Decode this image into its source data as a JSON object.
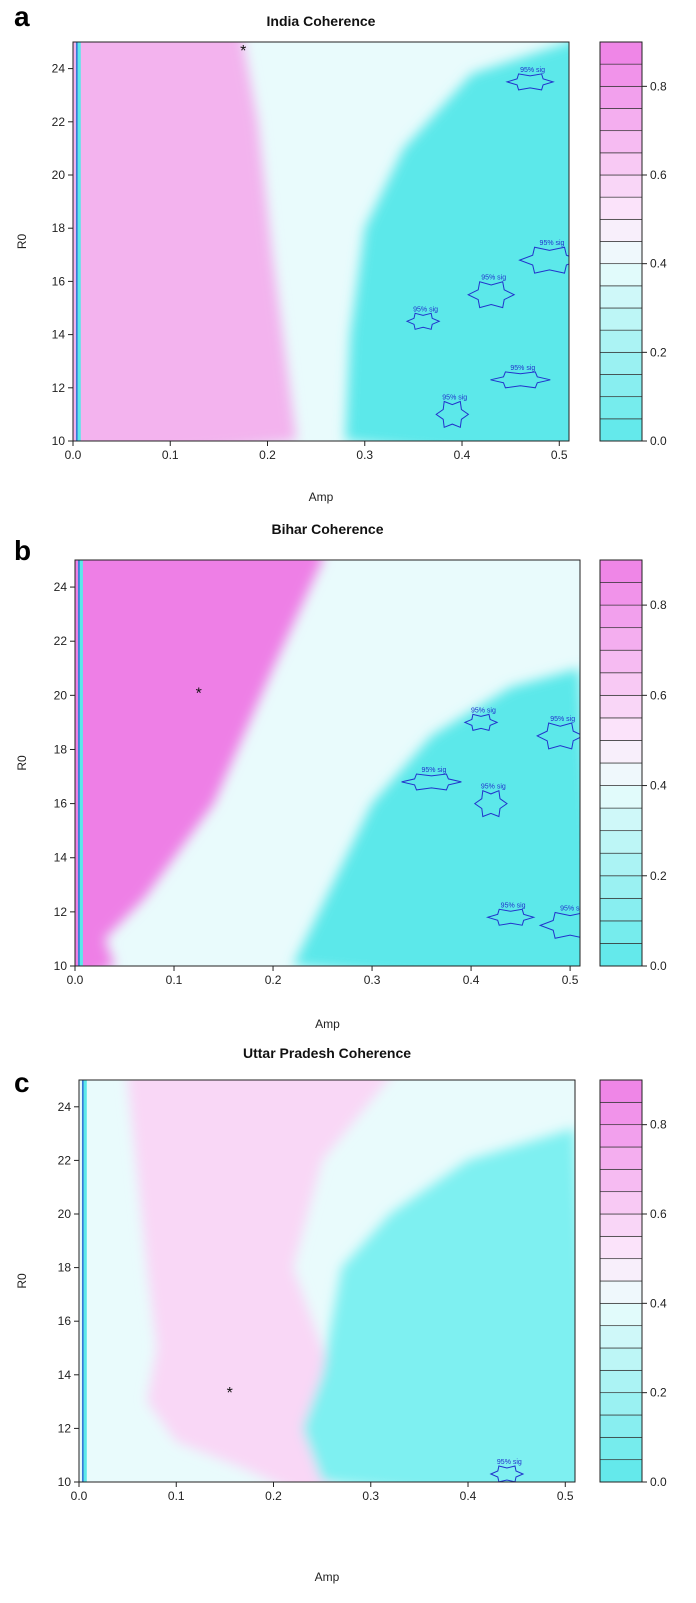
{
  "chart_data": [
    {
      "type": "heatmap",
      "panel_label": "a",
      "title": "India Coherence",
      "xlabel": "Amp",
      "ylabel": "R0",
      "xlim": [
        0.0,
        0.51
      ],
      "ylim": [
        10,
        25
      ],
      "xticks": [
        "0.0",
        "0.1",
        "0.2",
        "0.3",
        "0.4",
        "0.5"
      ],
      "yticks": [
        "10",
        "12",
        "14",
        "16",
        "18",
        "20",
        "22",
        "24"
      ],
      "colorbar": {
        "range": [
          0.0,
          0.9
        ],
        "ticks": [
          "0.0",
          "0.2",
          "0.4",
          "0.6",
          "0.8"
        ],
        "levels": 18
      },
      "pink_boundary": [
        [
          0.23,
          10
        ],
        [
          0.205,
          17
        ],
        [
          0.19,
          22
        ],
        [
          0.175,
          25
        ]
      ],
      "cyan_boundary": [
        [
          0.28,
          10
        ],
        [
          0.285,
          14
        ],
        [
          0.3,
          18
        ],
        [
          0.34,
          21
        ],
        [
          0.41,
          23.8
        ],
        [
          0.51,
          25
        ]
      ],
      "significance_label": "95% sig",
      "significance_points": [
        [
          0.36,
          14.5
        ],
        [
          0.43,
          15.5
        ],
        [
          0.46,
          12.3
        ],
        [
          0.39,
          11
        ],
        [
          0.47,
          23.5
        ],
        [
          0.49,
          16.8
        ]
      ],
      "max_marker": {
        "amp": 0.175,
        "r0": 24.7,
        "symbol": "*"
      }
    },
    {
      "type": "heatmap",
      "panel_label": "b",
      "title": "Bihar Coherence",
      "xlabel": "Amp",
      "ylabel": "R0",
      "xlim": [
        0.0,
        0.51
      ],
      "ylim": [
        10,
        25
      ],
      "xticks": [
        "0.0",
        "0.1",
        "0.2",
        "0.3",
        "0.4",
        "0.5"
      ],
      "yticks": [
        "10",
        "12",
        "14",
        "16",
        "18",
        "20",
        "22",
        "24"
      ],
      "colorbar": {
        "range": [
          0.0,
          0.9
        ],
        "ticks": [
          "0.0",
          "0.2",
          "0.4",
          "0.6",
          "0.8"
        ],
        "levels": 18
      },
      "pink_boundary": [
        [
          0.04,
          10
        ],
        [
          0.03,
          11
        ],
        [
          0.07,
          12.5
        ],
        [
          0.14,
          16
        ],
        [
          0.2,
          21
        ],
        [
          0.25,
          25
        ]
      ],
      "cyan_boundary": [
        [
          0.22,
          10
        ],
        [
          0.26,
          13
        ],
        [
          0.3,
          16
        ],
        [
          0.36,
          18.5
        ],
        [
          0.44,
          20.3
        ],
        [
          0.51,
          21
        ]
      ],
      "significance_label": "95% sig",
      "significance_points": [
        [
          0.41,
          19
        ],
        [
          0.49,
          18.5
        ],
        [
          0.36,
          16.8
        ],
        [
          0.42,
          16
        ],
        [
          0.44,
          11.8
        ],
        [
          0.5,
          11.5
        ]
      ],
      "max_marker": {
        "amp": 0.125,
        "r0": 20.1,
        "symbol": "*"
      }
    },
    {
      "type": "heatmap",
      "panel_label": "c",
      "title": "Uttar Pradesh Coherence",
      "xlabel": "Amp",
      "ylabel": "R0",
      "xlim": [
        0.0,
        0.51
      ],
      "ylim": [
        10,
        25
      ],
      "xticks": [
        "0.0",
        "0.1",
        "0.2",
        "0.3",
        "0.4",
        "0.5"
      ],
      "yticks": [
        "10",
        "12",
        "14",
        "16",
        "18",
        "20",
        "22",
        "24"
      ],
      "colorbar": {
        "range": [
          0.0,
          0.9
        ],
        "ticks": [
          "0.0",
          "0.2",
          "0.4",
          "0.6",
          "0.8"
        ],
        "levels": 18
      },
      "pink_boundary": [
        [
          0.05,
          25
        ],
        [
          0.07,
          18
        ],
        [
          0.08,
          15
        ],
        [
          0.07,
          13
        ],
        [
          0.1,
          11.5
        ],
        [
          0.17,
          10.5
        ],
        [
          0.2,
          10
        ]
      ],
      "cyan_boundary": [
        [
          0.25,
          10
        ],
        [
          0.23,
          12
        ],
        [
          0.25,
          14
        ],
        [
          0.27,
          18
        ],
        [
          0.32,
          20
        ],
        [
          0.4,
          22
        ],
        [
          0.51,
          23.2
        ]
      ],
      "significance_label": "95% sig",
      "significance_points": [
        [
          0.44,
          10.3
        ]
      ],
      "max_marker": {
        "amp": 0.155,
        "r0": 13.35,
        "symbol": "*"
      }
    }
  ]
}
